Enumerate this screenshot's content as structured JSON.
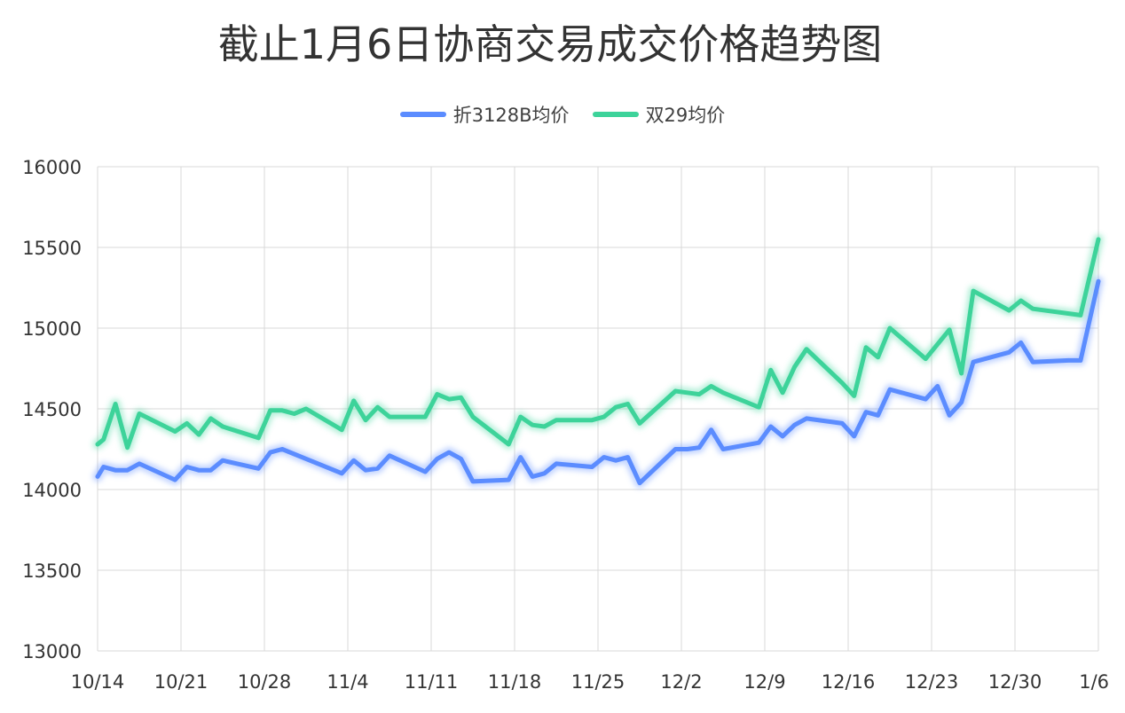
{
  "chart_data": {
    "type": "line",
    "title": "截止1月6日协商交易成交价格趋势图",
    "xlabel": "",
    "ylabel": "",
    "ylim": [
      13000,
      16000
    ],
    "yticks": [
      13000,
      13500,
      14000,
      14500,
      15000,
      15500,
      16000
    ],
    "xticks": [
      "10/14",
      "10/21",
      "10/28",
      "11/4",
      "11/11",
      "11/18",
      "11/25",
      "12/2",
      "12/9",
      "12/16",
      "12/23",
      "12/30",
      "1/6"
    ],
    "grid": true,
    "legend_position": "top-center",
    "series": [
      {
        "name": "折3128B均价",
        "color": "#5B8CFF",
        "points": [
          [
            0,
            14080
          ],
          [
            0.5,
            14140
          ],
          [
            1.5,
            14120
          ],
          [
            2.5,
            14120
          ],
          [
            3.5,
            14160
          ],
          [
            6.5,
            14060
          ],
          [
            7.5,
            14140
          ],
          [
            8.5,
            14120
          ],
          [
            9.5,
            14120
          ],
          [
            10.5,
            14180
          ],
          [
            13.5,
            14130
          ],
          [
            14.5,
            14230
          ],
          [
            15.5,
            14250
          ],
          [
            17.5,
            14190
          ],
          [
            20.5,
            14100
          ],
          [
            21.5,
            14180
          ],
          [
            22.5,
            14120
          ],
          [
            23.5,
            14130
          ],
          [
            24.5,
            14210
          ],
          [
            27.5,
            14110
          ],
          [
            28.5,
            14190
          ],
          [
            29.5,
            14230
          ],
          [
            30.5,
            14190
          ],
          [
            31.5,
            14050
          ],
          [
            34.5,
            14060
          ],
          [
            35.5,
            14200
          ],
          [
            36.5,
            14080
          ],
          [
            37.5,
            14100
          ],
          [
            38.5,
            14160
          ],
          [
            41.5,
            14140
          ],
          [
            42.5,
            14200
          ],
          [
            43.5,
            14180
          ],
          [
            44.5,
            14200
          ],
          [
            45.5,
            14040
          ],
          [
            48.5,
            14250
          ],
          [
            49.5,
            14250
          ],
          [
            50.5,
            14260
          ],
          [
            51.5,
            14370
          ],
          [
            52.5,
            14250
          ],
          [
            55.5,
            14290
          ],
          [
            56.5,
            14390
          ],
          [
            57.5,
            14330
          ],
          [
            58.5,
            14400
          ],
          [
            59.5,
            14440
          ],
          [
            62.5,
            14410
          ],
          [
            63.5,
            14330
          ],
          [
            64.5,
            14480
          ],
          [
            65.5,
            14460
          ],
          [
            66.5,
            14620
          ],
          [
            69.5,
            14560
          ],
          [
            70.5,
            14640
          ],
          [
            71.5,
            14460
          ],
          [
            72.5,
            14540
          ],
          [
            73.5,
            14790
          ],
          [
            76.5,
            14850
          ],
          [
            77.5,
            14910
          ],
          [
            78.5,
            14790
          ],
          [
            81.5,
            14800
          ],
          [
            82.5,
            14800
          ],
          [
            84,
            15290
          ]
        ]
      },
      {
        "name": "双29均价",
        "color": "#3DD39A",
        "points": [
          [
            0,
            14280
          ],
          [
            0.5,
            14310
          ],
          [
            1.5,
            14530
          ],
          [
            2.5,
            14260
          ],
          [
            3.5,
            14470
          ],
          [
            6.5,
            14360
          ],
          [
            7.5,
            14410
          ],
          [
            8.5,
            14340
          ],
          [
            9.5,
            14440
          ],
          [
            10.5,
            14390
          ],
          [
            13.5,
            14320
          ],
          [
            14.5,
            14490
          ],
          [
            15.5,
            14490
          ],
          [
            16.5,
            14470
          ],
          [
            17.5,
            14500
          ],
          [
            20.5,
            14370
          ],
          [
            21.5,
            14550
          ],
          [
            22.5,
            14430
          ],
          [
            23.5,
            14510
          ],
          [
            24.5,
            14450
          ],
          [
            27.5,
            14450
          ],
          [
            28.5,
            14590
          ],
          [
            29.5,
            14560
          ],
          [
            30.5,
            14570
          ],
          [
            31.5,
            14450
          ],
          [
            34.5,
            14280
          ],
          [
            35.5,
            14450
          ],
          [
            36.5,
            14400
          ],
          [
            37.5,
            14390
          ],
          [
            38.5,
            14430
          ],
          [
            41.5,
            14430
          ],
          [
            42.5,
            14450
          ],
          [
            43.5,
            14510
          ],
          [
            44.5,
            14530
          ],
          [
            45.5,
            14410
          ],
          [
            48.5,
            14610
          ],
          [
            49.5,
            14600
          ],
          [
            50.5,
            14590
          ],
          [
            51.5,
            14640
          ],
          [
            52.5,
            14600
          ],
          [
            55.5,
            14510
          ],
          [
            56.5,
            14740
          ],
          [
            57.5,
            14600
          ],
          [
            58.5,
            14760
          ],
          [
            59.5,
            14870
          ],
          [
            62.5,
            14660
          ],
          [
            63.5,
            14580
          ],
          [
            64.5,
            14880
          ],
          [
            65.5,
            14820
          ],
          [
            66.5,
            15000
          ],
          [
            69.5,
            14810
          ],
          [
            70.5,
            14900
          ],
          [
            71.5,
            14990
          ],
          [
            72.5,
            14720
          ],
          [
            73.5,
            15230
          ],
          [
            76.5,
            15110
          ],
          [
            77.5,
            15170
          ],
          [
            78.5,
            15120
          ],
          [
            82.5,
            15080
          ],
          [
            84,
            15550
          ]
        ]
      }
    ]
  }
}
